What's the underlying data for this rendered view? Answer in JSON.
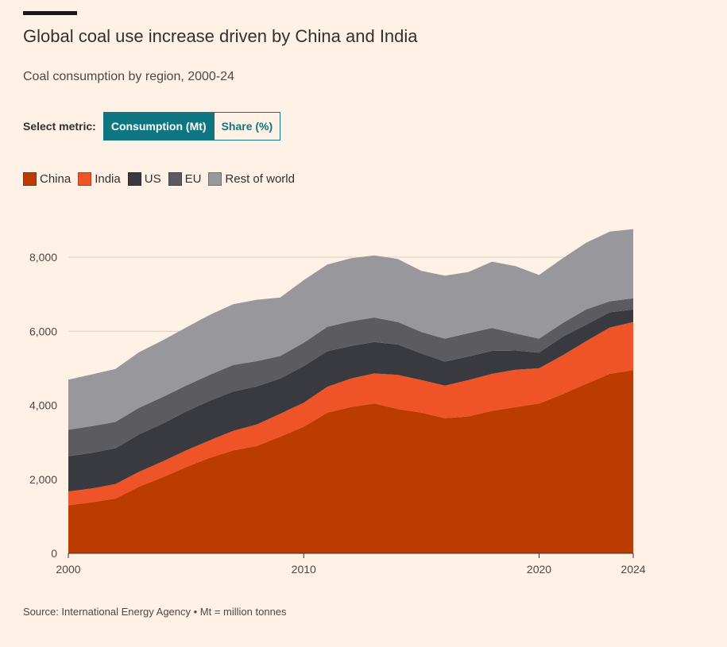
{
  "title": "Global coal use increase driven by China and India",
  "subtitle": "Coal consumption by region, 2000-24",
  "metric_selector": {
    "label": "Select metric:",
    "options": [
      "Consumption (Mt)",
      "Share (%)"
    ],
    "selected": "Consumption (Mt)"
  },
  "source": "Source: International Energy Agency • Mt = million tonnes",
  "chart_data": {
    "type": "area",
    "stacked": true,
    "x": [
      2000,
      2001,
      2002,
      2003,
      2004,
      2005,
      2006,
      2007,
      2008,
      2009,
      2010,
      2011,
      2012,
      2013,
      2014,
      2015,
      2016,
      2017,
      2018,
      2019,
      2020,
      2021,
      2022,
      2023,
      2024
    ],
    "series": [
      {
        "name": "China",
        "color": "#bb3b00",
        "values": [
          1300,
          1380,
          1480,
          1800,
          2050,
          2330,
          2580,
          2780,
          2900,
          3150,
          3420,
          3800,
          3950,
          4050,
          3900,
          3800,
          3650,
          3700,
          3850,
          3950,
          4050,
          4300,
          4580,
          4850,
          4950
        ]
      },
      {
        "name": "India",
        "color": "#ee5427",
        "values": [
          370,
          375,
          390,
          400,
          430,
          450,
          470,
          530,
          580,
          620,
          650,
          700,
          770,
          810,
          920,
          880,
          880,
          980,
          1000,
          1010,
          950,
          1050,
          1150,
          1250,
          1300
        ]
      },
      {
        "name": "US",
        "color": "#393940",
        "values": [
          950,
          960,
          970,
          1010,
          1020,
          1050,
          1070,
          1060,
          1030,
          950,
          990,
          960,
          880,
          850,
          820,
          720,
          650,
          640,
          620,
          520,
          420,
          500,
          450,
          410,
          340
        ]
      },
      {
        "name": "EU",
        "color": "#5b5b60",
        "values": [
          720,
          720,
          710,
          720,
          720,
          700,
          700,
          720,
          680,
          610,
          630,
          660,
          670,
          660,
          610,
          580,
          620,
          630,
          620,
          460,
          380,
          370,
          410,
          300,
          300
        ]
      },
      {
        "name": "Rest of world",
        "color": "#97979c",
        "values": [
          1350,
          1400,
          1430,
          1500,
          1530,
          1570,
          1620,
          1640,
          1660,
          1580,
          1690,
          1680,
          1700,
          1680,
          1700,
          1650,
          1700,
          1650,
          1790,
          1820,
          1720,
          1750,
          1800,
          1880,
          1870
        ]
      }
    ],
    "xticks": [
      2000,
      2010,
      2020,
      2024
    ],
    "yticks": [
      0,
      2000,
      4000,
      6000,
      8000
    ],
    "ytick_labels": [
      "0",
      "2,000",
      "4,000",
      "6,000",
      "8,000"
    ],
    "ylim": [
      0,
      9000
    ],
    "xlim": [
      2000,
      2024
    ],
    "grid": true,
    "legend_position": "top-left"
  }
}
